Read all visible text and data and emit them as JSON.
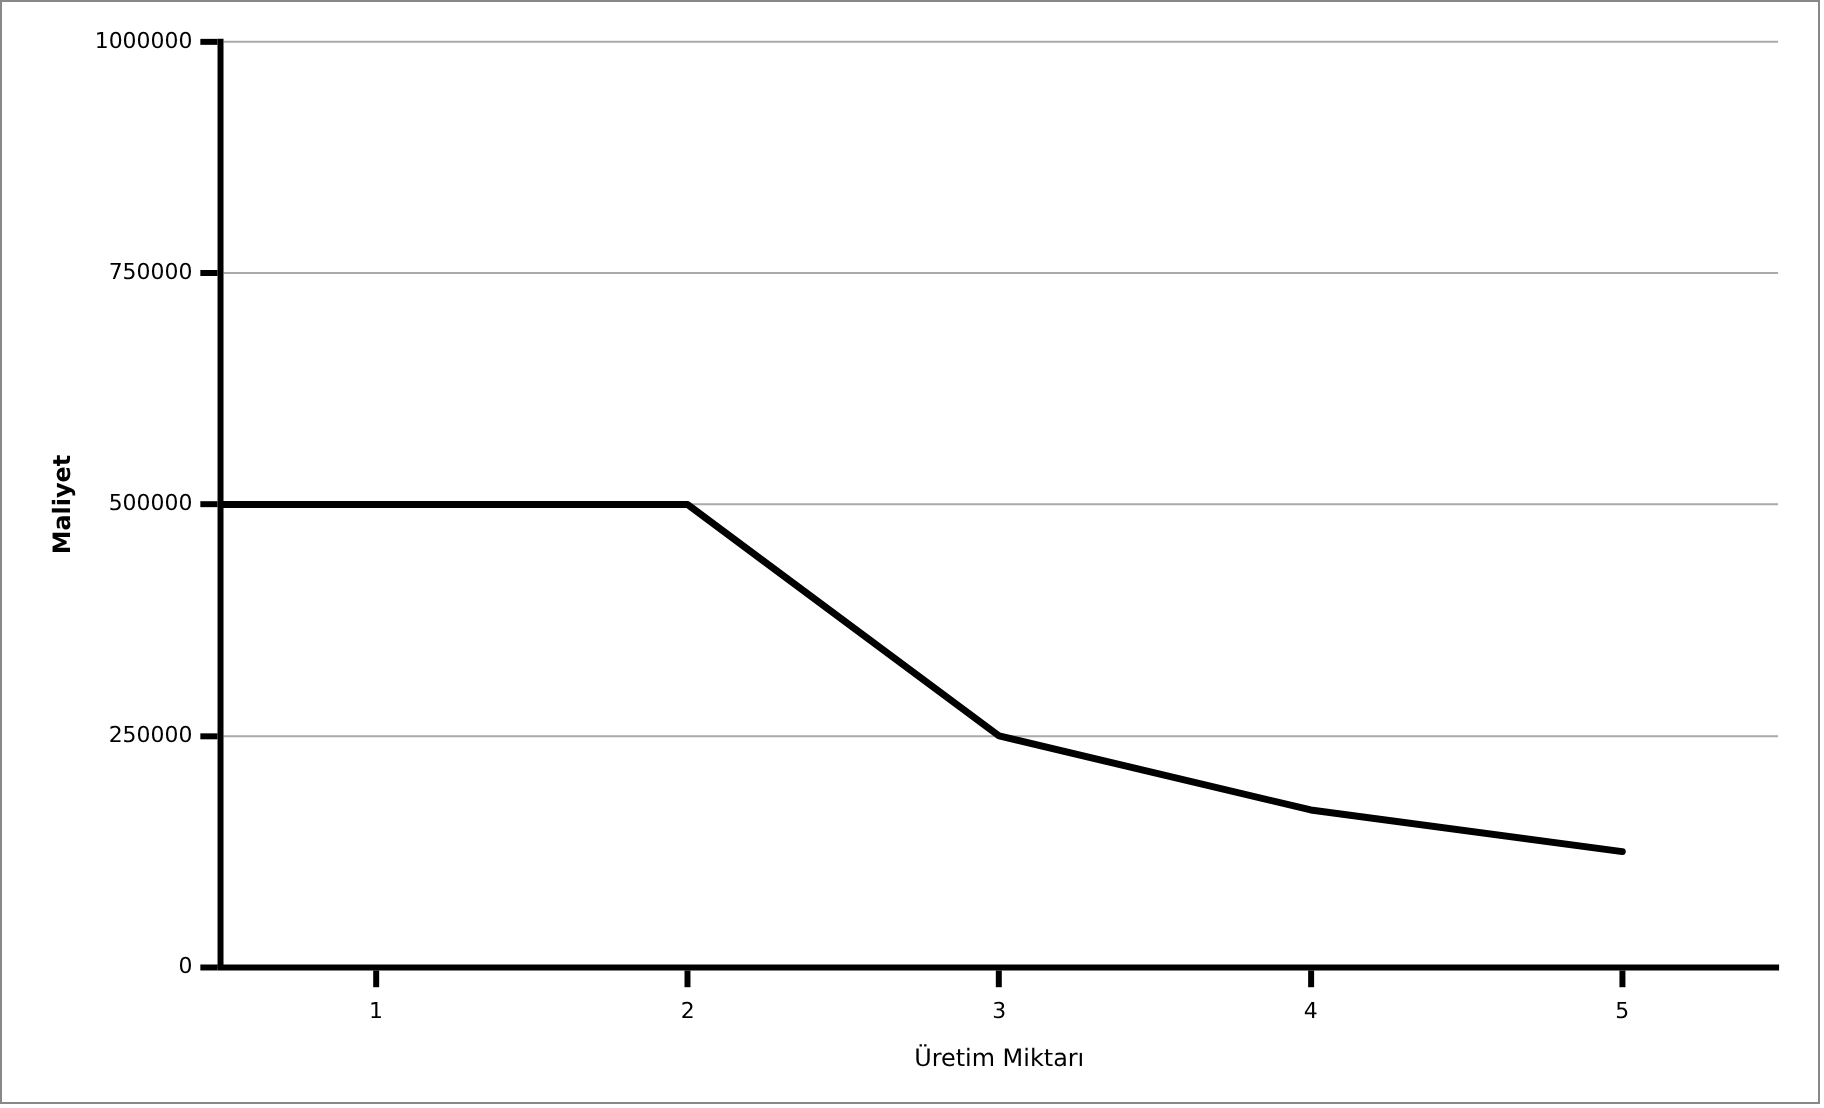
{
  "chart_data": {
    "type": "line",
    "xlabel": "Üretim Miktarı",
    "ylabel": "Maliyet",
    "x": [
      0.5,
      2,
      3,
      4,
      5
    ],
    "series": [
      {
        "color": "#000000",
        "values": [
          500000,
          500000,
          250000,
          170000,
          125000
        ]
      }
    ],
    "xlim": [
      0.5,
      5.5
    ],
    "xticks": [
      1,
      2,
      3,
      4,
      5
    ],
    "ylim": [
      0,
      1000000
    ],
    "yticks": [
      0,
      250000,
      500000,
      750000,
      1000000
    ],
    "grid": "y",
    "legend": false,
    "marker": "none",
    "line_style": "solid"
  }
}
